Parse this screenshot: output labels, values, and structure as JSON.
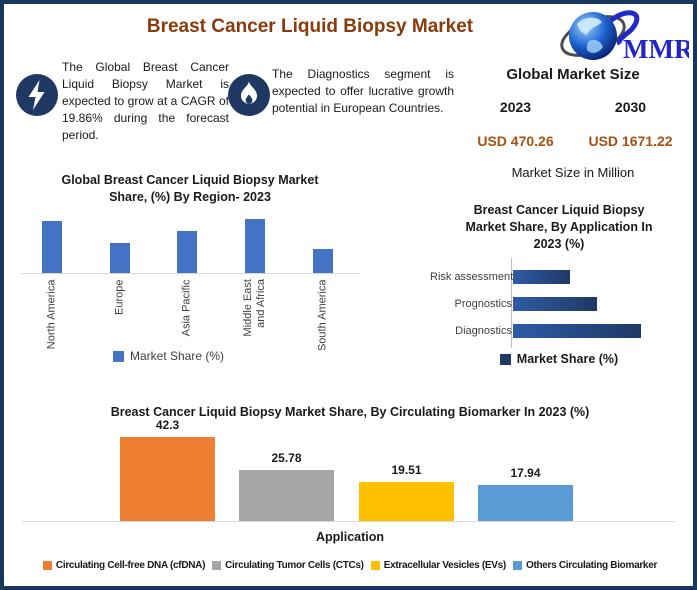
{
  "header": {
    "title": "Breast Cancer Liquid Biopsy Market",
    "logo_text": "MMR"
  },
  "callouts": [
    {
      "icon": "lightning-bolt-icon",
      "text": "The Global Breast Cancer Liquid Biopsy Market is expected to grow at a CAGR of 19.86% during the forecast period."
    },
    {
      "icon": "flame-icon",
      "text": "The Diagnostics segment is expected to offer lucrative growth potential in European Countries."
    }
  ],
  "market_size": {
    "title": "Global Market Size",
    "years": [
      "2023",
      "2030"
    ],
    "values": [
      "USD 470.26",
      "USD 1671.22"
    ],
    "note": "Market Size in Million"
  },
  "chart_data": [
    {
      "type": "bar",
      "title": "Global Breast Cancer Liquid Biopsy Market Share, (%) By Region- 2023",
      "title_lines": [
        "Global Breast Cancer Liquid Biopsy Market",
        "Share, (%) By Region- 2023"
      ],
      "categories": [
        "North America",
        "Europe",
        "Asia Pacific",
        "Middle East and Africa",
        "South America"
      ],
      "values": [
        35,
        20,
        28,
        36,
        16
      ],
      "values_note": "estimated from bar heights; value axis not labeled",
      "legend": "Market Share (%)",
      "bar_color": "#4472C4",
      "legend_position": "bottom",
      "grid": false
    },
    {
      "type": "bar",
      "orientation": "horizontal",
      "title": "Breast Cancer Liquid Biopsy Market Share, By Application In 2023 (%)",
      "title_lines": [
        "Breast Cancer Liquid Biopsy",
        "Market Share, By Application In",
        "2023 (%)"
      ],
      "categories": [
        "Risk assessment",
        "Prognostics",
        "Diagnostics"
      ],
      "values": [
        21,
        31,
        47
      ],
      "values_note": "estimated from bar lengths; value axis not labeled",
      "legend": "Market Share (%)",
      "bar_gradient": [
        "#2E5CA6",
        "#1F3864"
      ],
      "legend_position": "bottom",
      "grid": false
    },
    {
      "type": "bar",
      "title": "Breast Cancer Liquid Biopsy Market Share, By Circulating Biomarker In 2023 (%)",
      "categories": [
        "Circulating Cell-free DNA (cfDNA)",
        "Circulating Tumor Cells (CTCs)",
        "Extracellular Vesicles (EVs)",
        "Others Circulating Biomarker"
      ],
      "values": [
        42.3,
        25.78,
        19.51,
        17.94
      ],
      "data_labels": [
        42.3,
        25.78,
        19.51,
        17.94
      ],
      "colors": [
        "#ED7D31",
        "#A5A5A5",
        "#FFC000",
        "#5B9BD5"
      ],
      "xlabel": "Application",
      "legend_position": "bottom",
      "grid": false
    }
  ],
  "colors": {
    "border": "#17375E",
    "header_title": "#8A3A0B",
    "icon_circle": "#1F3864",
    "usd_values": "#A8500F"
  }
}
